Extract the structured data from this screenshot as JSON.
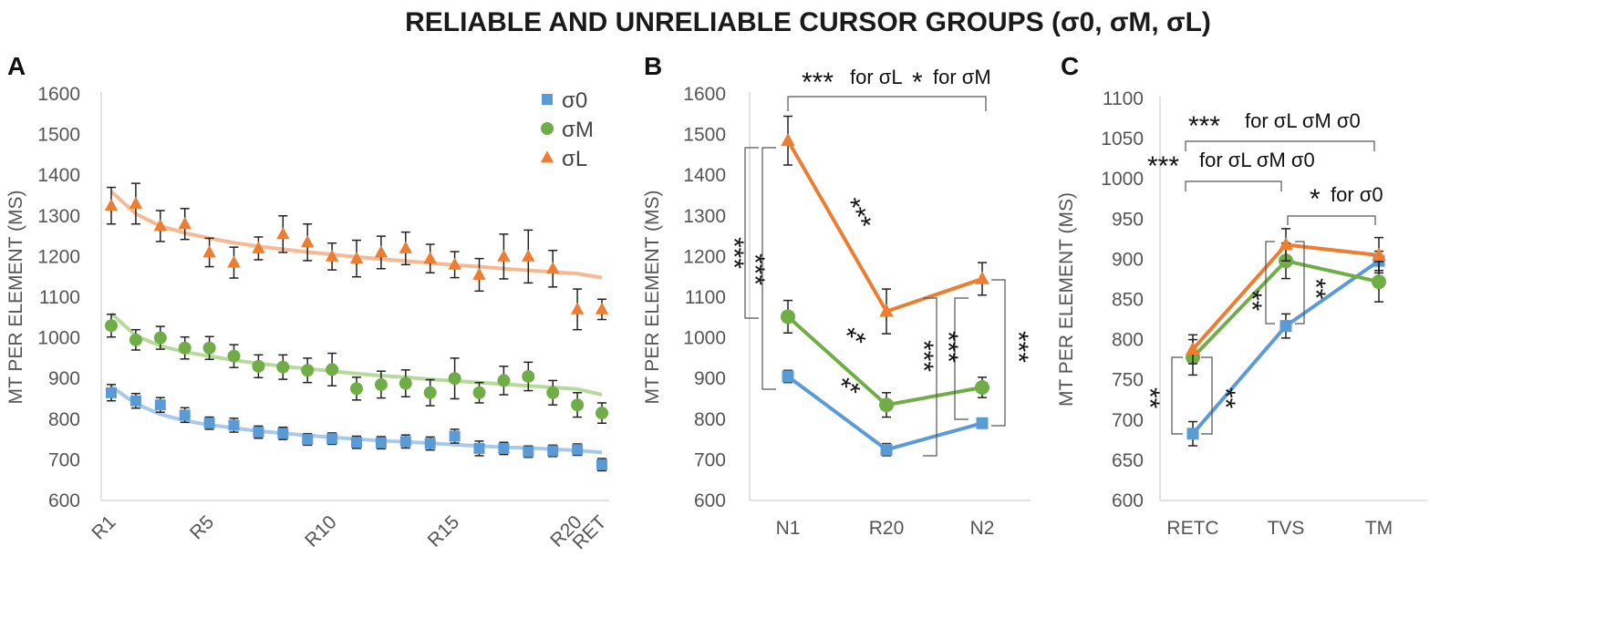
{
  "title": "RELIABLE AND UNRELIABLE CURSOR GROUPS (σ0, σM, σL)",
  "colors": {
    "s0": "#5b9bd5",
    "sM": "#70ad47",
    "sL": "#ed7d31",
    "s0_fit": "#a9c9ea",
    "sM_fit": "#b7d99b",
    "sL_fit": "#f6b994"
  },
  "chart_data": [
    {
      "panel": "A",
      "type": "scatter",
      "ylabel": "MT PER ELEMENT (MS)",
      "ylim": [
        600,
        1600
      ],
      "yticks": [
        "600",
        "700",
        "800",
        "900",
        "1000",
        "1100",
        "1200",
        "1300",
        "1400",
        "1500",
        "1600"
      ],
      "x": [
        "R1",
        "R2",
        "R3",
        "R4",
        "R5",
        "R6",
        "R7",
        "R8",
        "R9",
        "R10",
        "R11",
        "R12",
        "R13",
        "R14",
        "R15",
        "R16",
        "R17",
        "R18",
        "R19",
        "R20",
        "RET"
      ],
      "xtick_labels": [
        {
          "label": "R1",
          "index": 0
        },
        {
          "label": "R5",
          "index": 4
        },
        {
          "label": "R10",
          "index": 9
        },
        {
          "label": "R15",
          "index": 14
        },
        {
          "label": "R20",
          "index": 19
        },
        {
          "label": "RET",
          "index": 20
        }
      ],
      "legend": [
        "σ0",
        "σM",
        "σL"
      ],
      "series": [
        {
          "name": "σ0",
          "marker": "square",
          "values": [
            865,
            845,
            835,
            810,
            790,
            785,
            768,
            765,
            750,
            752,
            743,
            742,
            745,
            740,
            758,
            728,
            728,
            720,
            722,
            725,
            688
          ],
          "errors": [
            20,
            18,
            18,
            18,
            15,
            17,
            15,
            15,
            14,
            14,
            15,
            15,
            16,
            16,
            17,
            18,
            15,
            14,
            14,
            14,
            15
          ],
          "fit": [
            880,
            838,
            812,
            796,
            786,
            778,
            771,
            765,
            760,
            755,
            751,
            747,
            744,
            741,
            737,
            734,
            731,
            729,
            726,
            723,
            718
          ]
        },
        {
          "name": "σM",
          "marker": "circle",
          "values": [
            1030,
            995,
            1000,
            975,
            975,
            955,
            930,
            928,
            920,
            922,
            875,
            885,
            888,
            865,
            900,
            865,
            895,
            905,
            865,
            835,
            815
          ],
          "errors": [
            28,
            25,
            28,
            27,
            28,
            28,
            28,
            30,
            30,
            40,
            28,
            33,
            33,
            32,
            50,
            25,
            35,
            35,
            30,
            30,
            25
          ],
          "fit": [
            1060,
            1005,
            980,
            965,
            955,
            945,
            937,
            930,
            924,
            918,
            912,
            907,
            903,
            898,
            894,
            890,
            886,
            882,
            878,
            874,
            860
          ]
        },
        {
          "name": "σL",
          "marker": "triangle",
          "values": [
            1325,
            1330,
            1275,
            1280,
            1210,
            1185,
            1220,
            1255,
            1235,
            1200,
            1195,
            1210,
            1220,
            1195,
            1180,
            1155,
            1200,
            1200,
            1170,
            1070,
            1070
          ],
          "errors": [
            45,
            50,
            38,
            38,
            35,
            38,
            28,
            45,
            45,
            33,
            45,
            40,
            40,
            35,
            32,
            40,
            55,
            65,
            45,
            50,
            25
          ],
          "fit": [
            1360,
            1305,
            1275,
            1258,
            1245,
            1234,
            1225,
            1218,
            1211,
            1205,
            1199,
            1194,
            1189,
            1184,
            1179,
            1175,
            1170,
            1166,
            1162,
            1158,
            1148
          ]
        }
      ]
    },
    {
      "panel": "B",
      "type": "line",
      "ylabel": "MT PER ELEMENT (MS)",
      "ylim": [
        600,
        1600
      ],
      "yticks": [
        "600",
        "700",
        "800",
        "900",
        "1000",
        "1100",
        "1200",
        "1300",
        "1400",
        "1500",
        "1600"
      ],
      "categories": [
        "N1",
        "R20",
        "N2"
      ],
      "series": [
        {
          "name": "σ0",
          "marker": "square",
          "values": [
            905,
            725,
            790
          ],
          "errors": [
            15,
            15,
            12
          ]
        },
        {
          "name": "σM",
          "marker": "circle",
          "values": [
            1052,
            835,
            878
          ],
          "errors": [
            40,
            30,
            25
          ]
        },
        {
          "name": "σL",
          "marker": "triangle",
          "values": [
            1485,
            1065,
            1145
          ],
          "errors": [
            60,
            55,
            40
          ]
        }
      ],
      "annotations": {
        "top_stars": "***",
        "top_text1": "for σL",
        "top_star2": "*",
        "top_text2": "for σM",
        "left_stars": "***",
        "left_stars2": "***",
        "l1_stars": "**",
        "l2_stars": "**",
        "r1_stars": "***",
        "r2_stars": "***",
        "r3_stars": "***"
      }
    },
    {
      "panel": "C",
      "type": "line",
      "ylabel": "MT PER ELEMENT (MS)",
      "ylim": [
        600,
        1100
      ],
      "yticks": [
        "600",
        "650",
        "700",
        "750",
        "800",
        "850",
        "900",
        "950",
        "1000",
        "1050",
        "1100"
      ],
      "categories": [
        "RETC",
        "TVS",
        "TM"
      ],
      "series": [
        {
          "name": "σ0",
          "marker": "square",
          "values": [
            683,
            817,
            898
          ],
          "errors": [
            15,
            15,
            12
          ]
        },
        {
          "name": "σM",
          "marker": "circle",
          "values": [
            778,
            898,
            872
          ],
          "errors": [
            22,
            22,
            25
          ]
        },
        {
          "name": "σL",
          "marker": "triangle",
          "values": [
            788,
            918,
            905
          ],
          "errors": [
            18,
            20,
            22
          ]
        }
      ],
      "annotations": {
        "b1_stars": "***",
        "b1_text": "for σL σM σ0",
        "b2_stars": "***",
        "b2_text": "for σL σM σ0",
        "b3_stars": "*",
        "b3_text": "for σ0",
        "left_stars": "**",
        "left2_stars": "**",
        "mid1_stars": "**",
        "mid2_stars": "**"
      }
    }
  ]
}
